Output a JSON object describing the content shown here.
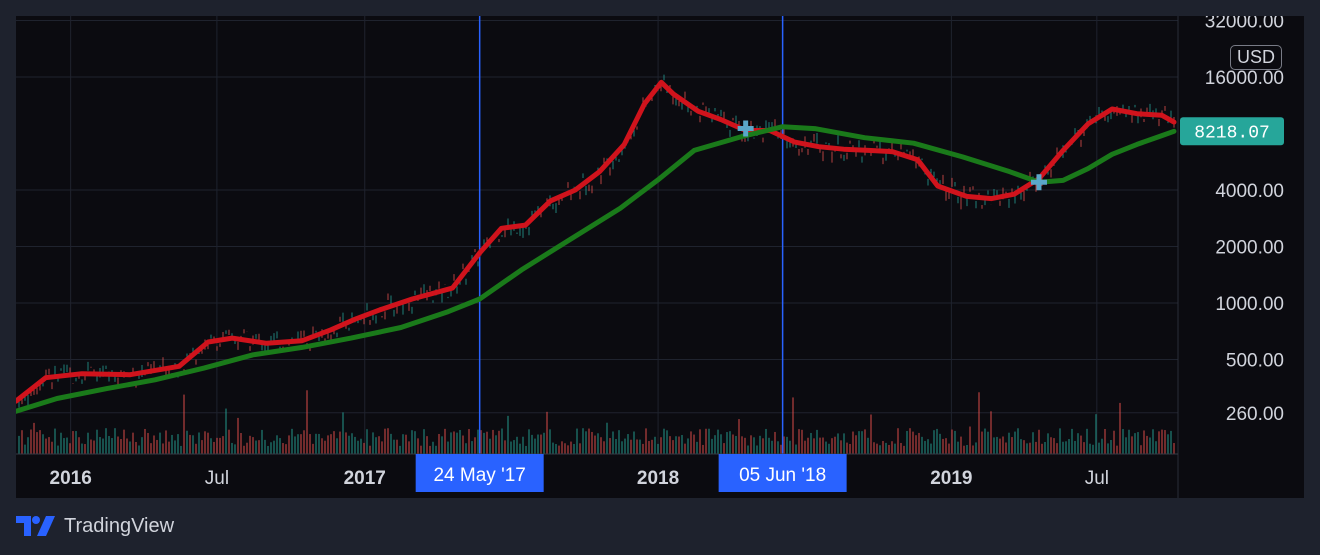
{
  "chart_data": {
    "type": "line",
    "title": "",
    "scale": "log",
    "currency": "USD",
    "last_price": "8218.07",
    "yticks": [
      {
        "label": "32000.00",
        "value": 32000
      },
      {
        "label": "16000.00",
        "value": 16000
      },
      {
        "label": "8218.07",
        "value": 8218.07
      },
      {
        "label": "4000.00",
        "value": 4000
      },
      {
        "label": "2000.00",
        "value": 2000
      },
      {
        "label": "1000.00",
        "value": 1000
      },
      {
        "label": "500.00",
        "value": 500
      },
      {
        "label": "260.00",
        "value": 260
      }
    ],
    "xticks": [
      {
        "label": "2016",
        "date": "2016-01-01",
        "major": true
      },
      {
        "label": "Jul",
        "date": "2016-07-01",
        "major": false
      },
      {
        "label": "2017",
        "date": "2017-01-01",
        "major": true
      },
      {
        "label": "2018",
        "date": "2018-01-01",
        "major": true
      },
      {
        "label": "2019",
        "date": "2019-01-01",
        "major": true
      },
      {
        "label": "Jul",
        "date": "2019-07-01",
        "major": false
      }
    ],
    "x_range": [
      "2015-10-25",
      "2019-10-10"
    ],
    "grid": true,
    "cursor_lines": [
      {
        "date": "2017-05-24",
        "label": "24 May '17"
      },
      {
        "date": "2018-06-05",
        "label": "05 Jun '18"
      }
    ],
    "series": [
      {
        "color": "#d0131c",
        "points": [
          [
            "2015-10-25",
            300
          ],
          [
            "2015-12-01",
            400
          ],
          [
            "2016-01-15",
            420
          ],
          [
            "2016-03-15",
            415
          ],
          [
            "2016-05-15",
            460
          ],
          [
            "2016-06-20",
            620
          ],
          [
            "2016-07-20",
            650
          ],
          [
            "2016-09-01",
            610
          ],
          [
            "2016-10-15",
            630
          ],
          [
            "2016-11-20",
            720
          ],
          [
            "2016-12-20",
            820
          ],
          [
            "2017-01-20",
            920
          ],
          [
            "2017-03-01",
            1050
          ],
          [
            "2017-04-20",
            1200
          ],
          [
            "2017-05-24",
            1850
          ],
          [
            "2017-06-20",
            2500
          ],
          [
            "2017-07-20",
            2600
          ],
          [
            "2017-08-20",
            3500
          ],
          [
            "2017-09-20",
            4000
          ],
          [
            "2017-10-20",
            5000
          ],
          [
            "2017-11-20",
            7000
          ],
          [
            "2017-12-15",
            11500
          ],
          [
            "2018-01-05",
            15000
          ],
          [
            "2018-01-20",
            13000
          ],
          [
            "2018-02-20",
            10500
          ],
          [
            "2018-03-20",
            9500
          ],
          [
            "2018-04-20",
            8300
          ],
          [
            "2018-05-20",
            8300
          ],
          [
            "2018-06-20",
            7200
          ],
          [
            "2018-07-20",
            6800
          ],
          [
            "2018-08-20",
            6600
          ],
          [
            "2018-09-20",
            6500
          ],
          [
            "2018-10-20",
            6400
          ],
          [
            "2018-11-20",
            5800
          ],
          [
            "2018-12-15",
            4200
          ],
          [
            "2019-01-20",
            3700
          ],
          [
            "2019-02-20",
            3600
          ],
          [
            "2019-03-20",
            3800
          ],
          [
            "2019-04-20",
            4600
          ],
          [
            "2019-05-20",
            6500
          ],
          [
            "2019-06-20",
            9000
          ],
          [
            "2019-07-20",
            10800
          ],
          [
            "2019-08-20",
            10200
          ],
          [
            "2019-09-20",
            10000
          ],
          [
            "2019-10-05",
            9200
          ]
        ]
      },
      {
        "color": "#1a7a1a",
        "points": [
          [
            "2015-10-25",
            265
          ],
          [
            "2015-12-15",
            310
          ],
          [
            "2016-02-15",
            350
          ],
          [
            "2016-04-15",
            390
          ],
          [
            "2016-06-15",
            450
          ],
          [
            "2016-08-15",
            530
          ],
          [
            "2016-10-15",
            580
          ],
          [
            "2016-12-15",
            650
          ],
          [
            "2017-02-15",
            740
          ],
          [
            "2017-04-15",
            900
          ],
          [
            "2017-05-24",
            1050
          ],
          [
            "2017-07-15",
            1500
          ],
          [
            "2017-09-15",
            2200
          ],
          [
            "2017-11-15",
            3200
          ],
          [
            "2017-12-31",
            4500
          ],
          [
            "2018-02-15",
            6500
          ],
          [
            "2018-04-15",
            7700
          ],
          [
            "2018-06-05",
            8700
          ],
          [
            "2018-07-15",
            8500
          ],
          [
            "2018-09-15",
            7600
          ],
          [
            "2018-11-15",
            7100
          ],
          [
            "2019-01-15",
            6000
          ],
          [
            "2019-03-15",
            5000
          ],
          [
            "2019-04-20",
            4400
          ],
          [
            "2019-05-20",
            4500
          ],
          [
            "2019-06-20",
            5200
          ],
          [
            "2019-07-20",
            6200
          ],
          [
            "2019-08-20",
            7000
          ],
          [
            "2019-09-20",
            7800
          ],
          [
            "2019-10-05",
            8218.07
          ]
        ]
      }
    ],
    "crossover_markers": [
      {
        "date": "2018-04-20",
        "value": 8500
      },
      {
        "date": "2019-04-20",
        "value": 4400
      }
    ]
  },
  "branding": {
    "name": "TradingView"
  }
}
